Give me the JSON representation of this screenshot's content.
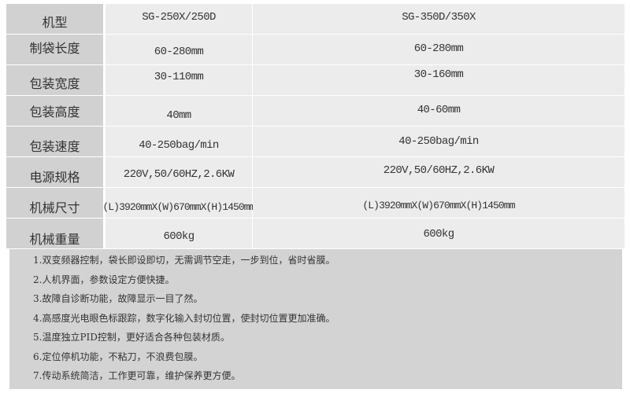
{
  "specs": [
    {
      "label": "机型",
      "a": "SG-250X/250D",
      "b": "SG-350D/350X"
    },
    {
      "label": "制袋长度",
      "a": "60-280mm",
      "b": "60-280mm"
    },
    {
      "label": "包装宽度",
      "a": "30-110mm",
      "b": "30-160mm"
    },
    {
      "label": "包装高度",
      "a": "40mm",
      "b": "40-60mm"
    },
    {
      "label": "包装速度",
      "a": "40-250bag/min",
      "b": "40-250bag/min"
    },
    {
      "label": "电源规格",
      "a": "220V,50/60HZ,2.6KW",
      "b": "220V,50/60HZ,2.6KW"
    },
    {
      "label": "机械尺寸",
      "a": "(L)3920mmX(W)670mmX(H)1450mm",
      "b": "(L)3920mmX(W)670mmX(H)1450mm"
    },
    {
      "label": "机械重量",
      "a": "600kg",
      "b": "600kg"
    }
  ],
  "features": [
    "1.双变频器控制，袋长即设即切，无需调节空走，一步到位，省时省膜。",
    "2.人机界面，参数设定方便快捷。",
    "3.故障自诊断功能，故障显示一目了然。",
    "4.高感度光电眼色标跟踪，数字化输入封切位置，使封切位置更加准确。",
    "5.温度独立PID控制，更好适合各种包装材质。",
    "6.定位停机功能，不粘刀，不浪费包膜。",
    "7.传动系统简洁，工作更可靠，维护保养更方便。"
  ]
}
